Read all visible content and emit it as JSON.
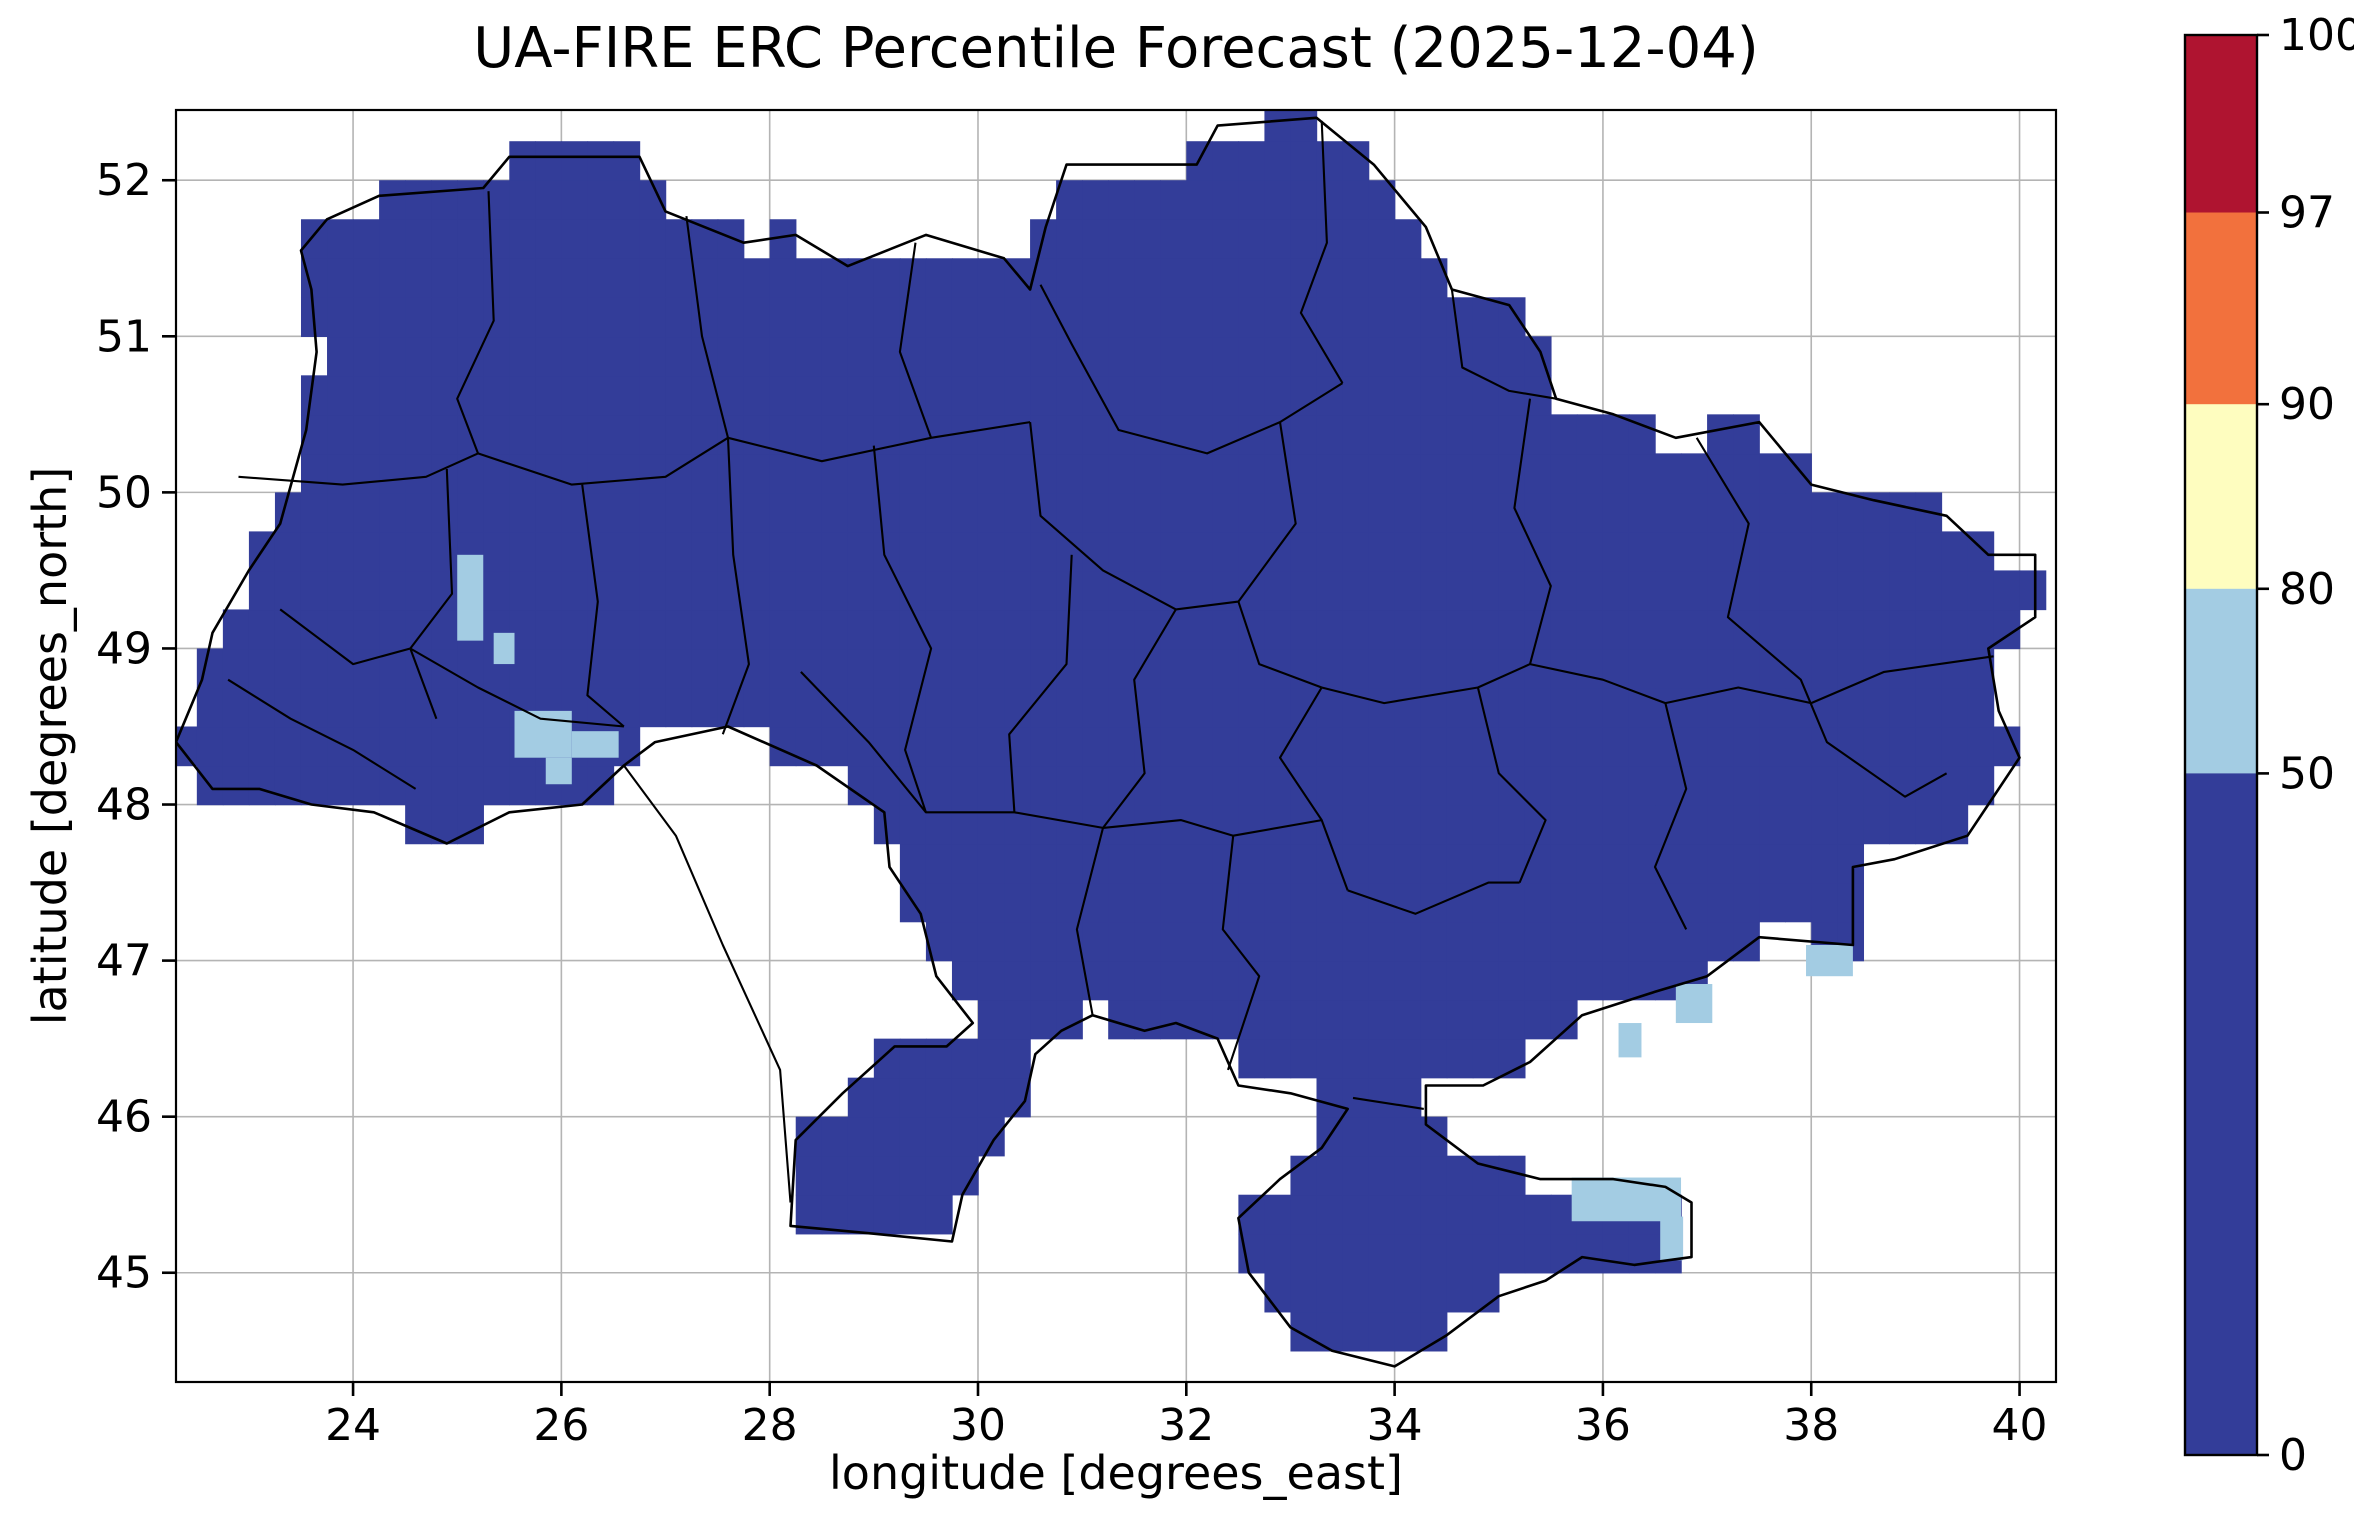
{
  "title": "UA-FIRE ERC Percentile Forecast (2025-12-04)",
  "colors": {
    "map_fill_0_50": "#333d99",
    "cell_50_80": "#a3cce3",
    "bin_80_90": "#fefdbf",
    "bin_90_97": "#f2713d",
    "bin_97_100": "#af1430",
    "grid": "#b4b4b4",
    "border": "#000000",
    "background": "#ffffff"
  },
  "chart_data": {
    "type": "heatmap",
    "title": "UA-FIRE ERC Percentile Forecast (2025-12-04)",
    "xlabel": "longitude [degrees_east]",
    "ylabel": "latitude [degrees_north]",
    "xlim": [
      22.3,
      40.35
    ],
    "ylim": [
      44.3,
      52.45
    ],
    "x_ticks": [
      24,
      26,
      28,
      30,
      32,
      34,
      36,
      38,
      40
    ],
    "y_ticks": [
      45,
      46,
      47,
      48,
      49,
      50,
      51,
      52
    ],
    "grid": true,
    "cell_size_deg": 0.25,
    "dominant_value_bin": "0-50",
    "notes": "Gridded ERC percentile forecast over Ukraine. Nearly all cells fall in the 0-50 percentile bin (dark blue); the listed cells fall in the 50-80 bin (light blue). No cells in 80-90, 90-97 or 97-100 bins.",
    "colorbar": {
      "position": "right",
      "levels": [
        0,
        50,
        80,
        90,
        97,
        100
      ],
      "tick_labels": [
        "0",
        "50",
        "80",
        "90",
        "97",
        "100"
      ],
      "colors_bottom_to_top": [
        "#333d99",
        "#a3cce3",
        "#fefdbf",
        "#f2713d",
        "#af1430"
      ],
      "boundary_fractions_from_top": [
        0,
        0.125,
        0.26,
        0.39,
        0.52,
        1
      ]
    },
    "cells_50_80": [
      {
        "lon": 25.0,
        "lat": 49.05,
        "w": 0.25,
        "h": 0.55
      },
      {
        "lon": 25.35,
        "lat": 48.9,
        "w": 0.2,
        "h": 0.2
      },
      {
        "lon": 25.55,
        "lat": 48.3,
        "w": 0.55,
        "h": 0.3
      },
      {
        "lon": 26.1,
        "lat": 48.3,
        "w": 0.45,
        "h": 0.17
      },
      {
        "lon": 25.85,
        "lat": 48.13,
        "w": 0.25,
        "h": 0.17
      },
      {
        "lon": 36.15,
        "lat": 46.38,
        "w": 0.22,
        "h": 0.22
      },
      {
        "lon": 36.7,
        "lat": 46.6,
        "w": 0.35,
        "h": 0.25
      },
      {
        "lon": 37.95,
        "lat": 46.9,
        "w": 0.45,
        "h": 0.2
      },
      {
        "lon": 35.7,
        "lat": 45.33,
        "w": 1.05,
        "h": 0.28
      },
      {
        "lon": 36.55,
        "lat": 45.08,
        "w": 0.22,
        "h": 0.28
      }
    ],
    "region_outline_lonlat": [
      [
        23.5,
        51.55
      ],
      [
        23.75,
        51.75
      ],
      [
        24.25,
        51.9
      ],
      [
        25.25,
        51.95
      ],
      [
        25.5,
        52.15
      ],
      [
        26.75,
        52.15
      ],
      [
        27.0,
        51.8
      ],
      [
        27.75,
        51.6
      ],
      [
        28.25,
        51.65
      ],
      [
        28.75,
        51.45
      ],
      [
        29.5,
        51.65
      ],
      [
        30.25,
        51.5
      ],
      [
        30.5,
        51.3
      ],
      [
        30.65,
        51.7
      ],
      [
        30.85,
        52.1
      ],
      [
        32.1,
        52.1
      ],
      [
        32.3,
        52.35
      ],
      [
        33.25,
        52.4
      ],
      [
        33.8,
        52.1
      ],
      [
        34.3,
        51.7
      ],
      [
        34.55,
        51.3
      ],
      [
        35.1,
        51.2
      ],
      [
        35.4,
        50.9
      ],
      [
        35.55,
        50.6
      ],
      [
        36.1,
        50.5
      ],
      [
        36.7,
        50.35
      ],
      [
        37.5,
        50.45
      ],
      [
        38.0,
        50.05
      ],
      [
        38.6,
        49.95
      ],
      [
        39.3,
        49.85
      ],
      [
        39.7,
        49.6
      ],
      [
        40.15,
        49.6
      ],
      [
        40.15,
        49.2
      ],
      [
        39.7,
        49.0
      ],
      [
        39.8,
        48.6
      ],
      [
        40.0,
        48.3
      ],
      [
        39.7,
        48.0
      ],
      [
        39.5,
        47.8
      ],
      [
        38.8,
        47.65
      ],
      [
        38.4,
        47.6
      ],
      [
        38.4,
        47.1
      ],
      [
        37.5,
        47.15
      ],
      [
        37.0,
        46.9
      ],
      [
        36.5,
        46.8
      ],
      [
        35.8,
        46.65
      ],
      [
        35.3,
        46.35
      ],
      [
        34.85,
        46.2
      ],
      [
        34.3,
        46.2
      ],
      [
        34.3,
        45.95
      ],
      [
        34.8,
        45.7
      ],
      [
        35.4,
        45.6
      ],
      [
        36.1,
        45.6
      ],
      [
        36.6,
        45.55
      ],
      [
        36.85,
        45.45
      ],
      [
        36.85,
        45.1
      ],
      [
        36.3,
        45.05
      ],
      [
        35.8,
        45.1
      ],
      [
        35.45,
        44.95
      ],
      [
        35.0,
        44.85
      ],
      [
        34.5,
        44.6
      ],
      [
        34.0,
        44.4
      ],
      [
        33.4,
        44.5
      ],
      [
        33.0,
        44.65
      ],
      [
        32.6,
        45.0
      ],
      [
        32.5,
        45.35
      ],
      [
        32.9,
        45.6
      ],
      [
        33.3,
        45.8
      ],
      [
        33.55,
        46.05
      ],
      [
        33.0,
        46.15
      ],
      [
        32.5,
        46.2
      ],
      [
        32.3,
        46.5
      ],
      [
        31.9,
        46.6
      ],
      [
        31.6,
        46.55
      ],
      [
        31.1,
        46.65
      ],
      [
        30.8,
        46.55
      ],
      [
        30.55,
        46.4
      ],
      [
        30.45,
        46.1
      ],
      [
        30.15,
        45.85
      ],
      [
        29.85,
        45.5
      ],
      [
        29.75,
        45.2
      ],
      [
        29.0,
        45.25
      ],
      [
        28.2,
        45.3
      ],
      [
        28.25,
        45.85
      ],
      [
        28.7,
        46.15
      ],
      [
        29.2,
        46.45
      ],
      [
        29.7,
        46.45
      ],
      [
        29.95,
        46.6
      ],
      [
        29.6,
        46.9
      ],
      [
        29.45,
        47.3
      ],
      [
        29.15,
        47.6
      ],
      [
        29.1,
        47.95
      ],
      [
        28.45,
        48.25
      ],
      [
        27.6,
        48.5
      ],
      [
        26.9,
        48.4
      ],
      [
        26.6,
        48.25
      ],
      [
        26.2,
        48.0
      ],
      [
        25.5,
        47.95
      ],
      [
        24.9,
        47.75
      ],
      [
        24.2,
        47.95
      ],
      [
        23.6,
        48.0
      ],
      [
        23.1,
        48.1
      ],
      [
        22.65,
        48.1
      ],
      [
        22.3,
        48.4
      ],
      [
        22.55,
        48.8
      ],
      [
        22.65,
        49.1
      ],
      [
        23.0,
        49.5
      ],
      [
        23.3,
        49.8
      ],
      [
        23.55,
        50.4
      ],
      [
        23.65,
        50.9
      ],
      [
        23.6,
        51.3
      ]
    ],
    "interior_borders_lonlat": [
      [
        [
          25.3,
          51.93
        ],
        [
          25.35,
          51.1
        ],
        [
          25.0,
          50.6
        ],
        [
          25.2,
          50.25
        ]
      ],
      [
        [
          27.2,
          51.77
        ],
        [
          27.35,
          51.0
        ],
        [
          27.6,
          50.35
        ]
      ],
      [
        [
          29.4,
          51.6
        ],
        [
          29.25,
          50.9
        ],
        [
          29.55,
          50.35
        ]
      ],
      [
        [
          30.6,
          51.33
        ],
        [
          30.9,
          50.95
        ],
        [
          31.35,
          50.4
        ],
        [
          32.2,
          50.25
        ],
        [
          32.9,
          50.45
        ],
        [
          33.5,
          50.7
        ]
      ],
      [
        [
          33.3,
          52.38
        ],
        [
          33.35,
          51.6
        ],
        [
          33.1,
          51.15
        ],
        [
          33.5,
          50.7
        ]
      ],
      [
        [
          22.9,
          50.1
        ],
        [
          23.9,
          50.05
        ],
        [
          24.7,
          50.1
        ],
        [
          25.2,
          50.25
        ],
        [
          26.1,
          50.05
        ],
        [
          27.0,
          50.1
        ],
        [
          27.6,
          50.35
        ],
        [
          28.5,
          50.2
        ],
        [
          29.55,
          50.35
        ],
        [
          30.5,
          50.45
        ]
      ],
      [
        [
          26.2,
          50.05
        ],
        [
          26.35,
          49.3
        ],
        [
          26.25,
          48.7
        ],
        [
          26.6,
          48.5
        ]
      ],
      [
        [
          24.9,
          50.15
        ],
        [
          24.95,
          49.35
        ],
        [
          24.55,
          49.0
        ],
        [
          24.8,
          48.55
        ]
      ],
      [
        [
          27.6,
          50.35
        ],
        [
          27.65,
          49.6
        ],
        [
          27.8,
          48.9
        ],
        [
          27.55,
          48.45
        ]
      ],
      [
        [
          23.3,
          49.25
        ],
        [
          24.0,
          48.9
        ],
        [
          24.55,
          49.0
        ],
        [
          25.2,
          48.75
        ],
        [
          25.8,
          48.55
        ],
        [
          26.6,
          48.5
        ]
      ],
      [
        [
          22.8,
          48.8
        ],
        [
          23.4,
          48.55
        ],
        [
          24.0,
          48.35
        ],
        [
          24.6,
          48.1
        ]
      ],
      [
        [
          29.0,
          50.3
        ],
        [
          29.1,
          49.6
        ],
        [
          29.55,
          49.0
        ],
        [
          29.3,
          48.35
        ],
        [
          29.5,
          47.95
        ]
      ],
      [
        [
          30.5,
          50.45
        ],
        [
          30.6,
          49.85
        ],
        [
          31.2,
          49.5
        ],
        [
          31.9,
          49.25
        ],
        [
          32.5,
          49.3
        ],
        [
          33.05,
          49.8
        ],
        [
          32.9,
          50.45
        ]
      ],
      [
        [
          31.9,
          49.25
        ],
        [
          31.5,
          48.8
        ],
        [
          31.6,
          48.2
        ],
        [
          31.2,
          47.85
        ]
      ],
      [
        [
          32.5,
          49.3
        ],
        [
          32.7,
          48.9
        ],
        [
          33.3,
          48.75
        ]
      ],
      [
        [
          35.3,
          50.6
        ],
        [
          35.15,
          49.9
        ],
        [
          35.5,
          49.4
        ],
        [
          35.3,
          48.9
        ]
      ],
      [
        [
          33.3,
          48.75
        ],
        [
          33.9,
          48.65
        ],
        [
          34.8,
          48.75
        ],
        [
          35.3,
          48.9
        ],
        [
          36.0,
          48.8
        ],
        [
          36.6,
          48.65
        ],
        [
          37.3,
          48.75
        ],
        [
          38.0,
          48.65
        ],
        [
          38.7,
          48.85
        ],
        [
          39.75,
          48.95
        ]
      ],
      [
        [
          36.9,
          50.35
        ],
        [
          37.4,
          49.8
        ],
        [
          37.2,
          49.2
        ],
        [
          37.9,
          48.8
        ],
        [
          38.15,
          48.4
        ],
        [
          38.9,
          48.05
        ],
        [
          39.3,
          48.2
        ]
      ],
      [
        [
          33.3,
          48.75
        ],
        [
          32.9,
          48.3
        ],
        [
          33.3,
          47.9
        ],
        [
          33.55,
          47.45
        ]
      ],
      [
        [
          34.8,
          48.75
        ],
        [
          35.0,
          48.2
        ],
        [
          35.45,
          47.9
        ],
        [
          35.2,
          47.5
        ]
      ],
      [
        [
          36.6,
          48.65
        ],
        [
          36.8,
          48.1
        ],
        [
          36.5,
          47.6
        ],
        [
          36.8,
          47.2
        ]
      ],
      [
        [
          33.55,
          47.45
        ],
        [
          34.2,
          47.3
        ],
        [
          34.9,
          47.5
        ],
        [
          35.2,
          47.5
        ]
      ],
      [
        [
          30.9,
          49.6
        ],
        [
          30.85,
          48.9
        ],
        [
          30.3,
          48.45
        ],
        [
          30.35,
          47.95
        ]
      ],
      [
        [
          28.3,
          48.85
        ],
        [
          28.95,
          48.4
        ],
        [
          29.5,
          47.95
        ],
        [
          30.35,
          47.95
        ],
        [
          31.2,
          47.85
        ],
        [
          31.95,
          47.9
        ],
        [
          32.45,
          47.8
        ],
        [
          33.3,
          47.9
        ]
      ],
      [
        [
          31.1,
          46.65
        ],
        [
          30.95,
          47.2
        ],
        [
          31.2,
          47.85
        ]
      ],
      [
        [
          32.45,
          47.8
        ],
        [
          32.35,
          47.2
        ],
        [
          32.7,
          46.9
        ],
        [
          32.4,
          46.3
        ]
      ],
      [
        [
          33.6,
          46.12
        ],
        [
          34.28,
          46.05
        ]
      ],
      [
        [
          34.55,
          51.3
        ],
        [
          34.65,
          50.8
        ],
        [
          35.1,
          50.65
        ],
        [
          35.55,
          50.6
        ]
      ],
      [
        [
          26.6,
          48.25
        ],
        [
          27.1,
          47.8
        ],
        [
          27.55,
          47.1
        ],
        [
          28.1,
          46.3
        ],
        [
          28.2,
          45.45
        ]
      ]
    ]
  }
}
